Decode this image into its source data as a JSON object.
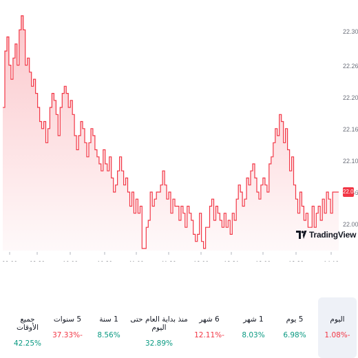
{
  "chart_data": {
    "type": "area",
    "y_ticks": [
      "22.30",
      "22.26",
      "22.20",
      "22.16",
      "22.10",
      "22.06",
      "22.00"
    ],
    "x_ticks": [
      "09:00",
      "09:30",
      "10:00",
      "10:30",
      "11:00",
      "11:30",
      "12:00",
      "12:31",
      "13:00",
      "13:30",
      "14:10"
    ],
    "last_price": "22.06",
    "ylim": [
      21.977,
      22.305
    ],
    "line_color": "#f23645",
    "values": [
      22.18,
      22.26,
      22.28,
      22.24,
      22.22,
      22.25,
      22.27,
      22.24,
      22.29,
      22.31,
      22.29,
      22.24,
      22.25,
      22.23,
      22.21,
      22.22,
      22.2,
      22.18,
      22.16,
      22.15,
      22.16,
      22.13,
      22.15,
      22.18,
      22.2,
      22.19,
      22.17,
      22.14,
      22.18,
      22.2,
      22.21,
      22.2,
      22.18,
      22.19,
      22.17,
      22.14,
      22.12,
      22.14,
      22.16,
      22.15,
      22.13,
      22.11,
      22.13,
      22.15,
      22.14,
      22.12,
      22.11,
      22.1,
      22.09,
      22.12,
      22.1,
      22.09,
      22.11,
      22.08,
      22.06,
      22.07,
      22.09,
      22.11,
      22.09,
      22.07,
      22.08,
      22.06,
      22.04,
      22.06,
      22.03,
      22.05,
      22.03,
      22.04,
      21.98,
      21.98,
      22.01,
      22.02,
      22.06,
      22.04,
      22.05,
      22.06,
      22.06,
      22.07,
      22.09,
      22.07,
      22.05,
      22.06,
      22.03,
      22.05,
      22.04,
      22.04,
      22.02,
      22.04,
      22.03,
      22.01,
      22.04,
      22.03,
      22.02,
      22.0,
      21.99,
      22.0,
      22.03,
      21.99,
      21.98,
      22.01,
      22.01,
      22.04,
      22.05,
      22.02,
      22.04,
      22.03,
      22.02,
      22.01,
      22.03,
      22.01,
      22.02,
      22.0,
      22.03,
      22.02,
      22.05,
      22.07,
      22.06,
      22.04,
      22.05,
      22.08,
      22.07,
      22.09,
      22.1,
      22.08,
      22.06,
      22.05,
      22.07,
      22.08,
      22.07,
      22.06,
      22.1,
      22.11,
      22.13,
      22.15,
      22.14,
      22.17,
      22.16,
      22.13,
      22.15,
      22.12,
      22.09,
      22.11,
      22.07,
      22.05,
      22.03,
      22.06,
      22.04,
      22.02,
      22.03,
      22.01,
      22.01,
      22.04,
      22.01,
      22.03,
      22.04,
      22.02,
      22.05,
      22.03,
      22.06,
      22.05,
      22.03,
      22.06,
      22.06,
      22.06,
      22.06
    ]
  },
  "logo": {
    "text": "TradingView",
    "mark": "TV"
  },
  "periods": [
    {
      "label": "جميع الأوقات",
      "value": "42.25%",
      "sign": "pos",
      "active": false
    },
    {
      "label": "5 سنوات",
      "value": "37.33%-",
      "sign": "neg",
      "active": false
    },
    {
      "label": "1 سنة",
      "value": "8.56%",
      "sign": "pos",
      "active": false
    },
    {
      "label": "منذ بداية العام حتى اليوم",
      "value": "32.89%",
      "sign": "pos",
      "active": false
    },
    {
      "label": "6 شهر",
      "value": "12.11%-",
      "sign": "neg",
      "active": false
    },
    {
      "label": "1 شهر",
      "value": "8.03%",
      "sign": "pos",
      "active": false
    },
    {
      "label": "5 يوم",
      "value": "6.98%",
      "sign": "pos",
      "active": false
    },
    {
      "label": "اليوم",
      "value": "1.08%-",
      "sign": "neg",
      "active": true
    }
  ]
}
